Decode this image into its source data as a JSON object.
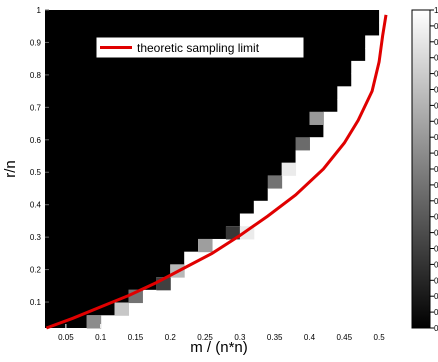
{
  "chart_data": {
    "type": "heatmap",
    "title": "",
    "xlabel": "m / (n*n)",
    "ylabel": "r/n",
    "xlim": [
      0.02,
      0.52
    ],
    "ylim": [
      0.02,
      1.0
    ],
    "xticks": [
      "0.05",
      "0.1",
      "0.15",
      "0.2",
      "0.25",
      "0.3",
      "0.35",
      "0.4",
      "0.45",
      "0.5"
    ],
    "xtick_values": [
      0.05,
      0.1,
      0.15,
      0.2,
      0.25,
      0.3,
      0.35,
      0.4,
      0.45,
      0.5
    ],
    "yticks": [
      "0.1",
      "0.2",
      "0.3",
      "0.4",
      "0.5",
      "0.6",
      "0.7",
      "0.8",
      "0.9",
      "1"
    ],
    "ytick_values": [
      0.1,
      0.2,
      0.3,
      0.4,
      0.5,
      0.6,
      0.7,
      0.8,
      0.9,
      1.0
    ],
    "grid_cols": 25,
    "grid_rows": 25,
    "boundary_row_col": [
      3,
      5,
      6,
      8,
      9,
      10,
      11,
      13,
      14,
      15,
      16,
      17,
      18,
      18,
      19,
      20,
      20,
      21,
      21,
      22,
      22,
      23,
      23,
      24,
      24
    ],
    "transition_cells": [
      {
        "col": 3,
        "row": 0,
        "level": 0.55
      },
      {
        "col": 5,
        "row": 1,
        "level": 0.78
      },
      {
        "col": 6,
        "row": 2,
        "level": 0.45
      },
      {
        "col": 8,
        "row": 3,
        "level": 0.25
      },
      {
        "col": 9,
        "row": 4,
        "level": 0.72
      },
      {
        "col": 11,
        "row": 6,
        "level": 0.62
      },
      {
        "col": 13,
        "row": 7,
        "level": 0.22
      },
      {
        "col": 14,
        "row": 7,
        "level": 0.92
      },
      {
        "col": 16,
        "row": 11,
        "level": 0.45
      },
      {
        "col": 17,
        "row": 12,
        "level": 0.92
      },
      {
        "col": 18,
        "row": 14,
        "level": 0.42
      },
      {
        "col": 19,
        "row": 16,
        "level": 0.6
      }
    ],
    "legend": {
      "position": "top-left",
      "entries": [
        {
          "label": "theoretic sampling limit",
          "color": "#e00000"
        }
      ]
    },
    "colorbar": {
      "range": [
        0,
        1
      ],
      "tick_labels": [
        "1",
        "0",
        "0",
        "0",
        "0",
        "0",
        "0",
        "0",
        "0",
        "0",
        "0",
        "0",
        "0",
        "0",
        "0",
        "0",
        "0",
        "0",
        "0",
        "0",
        "0"
      ]
    },
    "series": [
      {
        "name": "theoretic sampling limit",
        "color": "#e00000",
        "x": [
          0.022,
          0.06,
          0.1,
          0.14,
          0.18,
          0.22,
          0.26,
          0.3,
          0.34,
          0.38,
          0.42,
          0.45,
          0.47,
          0.49,
          0.5,
          0.505,
          0.51
        ],
        "y": [
          0.02,
          0.05,
          0.085,
          0.12,
          0.16,
          0.205,
          0.25,
          0.305,
          0.365,
          0.43,
          0.51,
          0.59,
          0.66,
          0.75,
          0.84,
          0.92,
          0.985
        ]
      }
    ]
  }
}
